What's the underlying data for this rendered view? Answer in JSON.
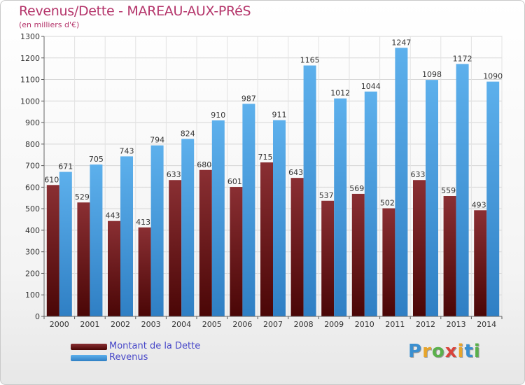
{
  "chart_data": {
    "type": "bar",
    "title": "Revenus/Dette - MAREAU-AUX-PRéS",
    "subtitle": "(en milliers d'€)",
    "categories": [
      "2000",
      "2001",
      "2002",
      "2003",
      "2004",
      "2005",
      "2006",
      "2007",
      "2008",
      "2009",
      "2010",
      "2011",
      "2012",
      "2013",
      "2014"
    ],
    "series": [
      {
        "name": "Montant de la Dette",
        "color": "#7a1e22",
        "values": [
          610,
          529,
          443,
          413,
          633,
          680,
          601,
          715,
          643,
          537,
          569,
          502,
          633,
          559,
          493
        ]
      },
      {
        "name": "Revenus",
        "color": "#4aa3e6",
        "values": [
          671,
          705,
          743,
          794,
          824,
          910,
          987,
          911,
          1165,
          1012,
          1044,
          1247,
          1098,
          1172,
          1090
        ]
      }
    ],
    "ylim": [
      0,
      1300
    ],
    "yticks": [
      0,
      100,
      200,
      300,
      400,
      500,
      600,
      700,
      800,
      900,
      1000,
      1100,
      1200,
      1300
    ],
    "grid": true,
    "legend_position": "bottom-left"
  },
  "brand": {
    "letters": [
      "P",
      "r",
      "o",
      "x",
      "i",
      "t",
      "i"
    ],
    "colors": [
      "#3a8fd0",
      "#e8a52a",
      "#5ab04b",
      "#d9433b",
      "#e8a52a",
      "#3a8fd0",
      "#5ab04b"
    ]
  }
}
